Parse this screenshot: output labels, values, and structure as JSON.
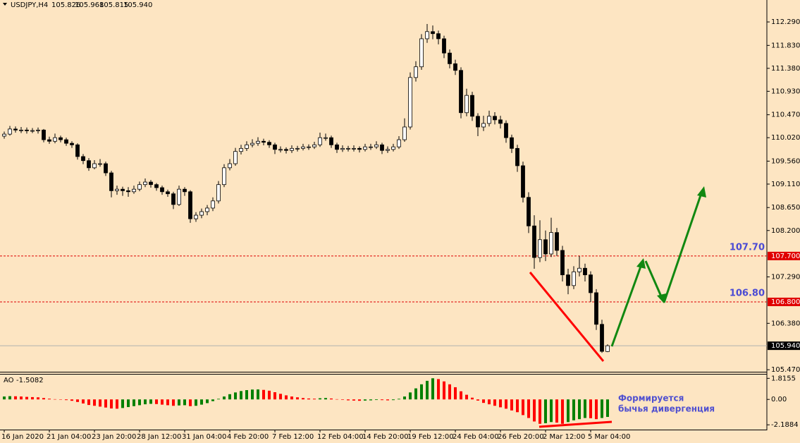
{
  "chart_data": {
    "type": "candlestick",
    "title": "USDJPY,H4",
    "ohlc_labels": [
      "105.826",
      "105.968",
      "105.815",
      "105.940"
    ],
    "categories": [
      "16 Jan 2020",
      null,
      null,
      null,
      null,
      null,
      null,
      null,
      "21 Jan 04:00",
      null,
      null,
      null,
      null,
      null,
      null,
      null,
      "23 Jan 20:00",
      null,
      null,
      null,
      null,
      null,
      null,
      null,
      "28 Jan 12:00",
      null,
      null,
      null,
      null,
      null,
      null,
      null,
      "31 Jan 04:00",
      null,
      null,
      null,
      null,
      null,
      null,
      null,
      "4 Feb 20:00",
      null,
      null,
      null,
      null,
      null,
      null,
      null,
      "7 Feb 12:00",
      null,
      null,
      null,
      null,
      null,
      null,
      null,
      "12 Feb 04:00",
      null,
      null,
      null,
      null,
      null,
      null,
      null,
      "14 Feb 20:00",
      null,
      null,
      null,
      null,
      null,
      null,
      null,
      "19 Feb 12:00",
      null,
      null,
      null,
      null,
      null,
      null,
      null,
      "24 Feb 04:00",
      null,
      null,
      null,
      null,
      null,
      null,
      null,
      "26 Feb 20:00",
      null,
      null,
      null,
      null,
      null,
      null,
      null,
      "2 Mar 12:00",
      null,
      null,
      null,
      null,
      null,
      null,
      null,
      "5 Mar 04:00",
      null,
      null,
      null
    ],
    "candles": [
      [
        110.05,
        110.14,
        110.0,
        110.09
      ],
      [
        110.09,
        110.25,
        110.06,
        110.19
      ],
      [
        110.19,
        110.24,
        110.12,
        110.17
      ],
      [
        110.17,
        110.23,
        110.11,
        110.17
      ],
      [
        110.17,
        110.22,
        110.1,
        110.16
      ],
      [
        110.16,
        110.21,
        110.11,
        110.16
      ],
      [
        110.16,
        110.22,
        110.1,
        110.17
      ],
      [
        110.17,
        110.19,
        109.93,
        109.98
      ],
      [
        109.98,
        110.04,
        109.9,
        109.95
      ],
      [
        109.95,
        110.1,
        109.91,
        110.02
      ],
      [
        110.02,
        110.06,
        109.93,
        109.98
      ],
      [
        109.98,
        110.02,
        109.86,
        109.91
      ],
      [
        109.91,
        109.95,
        109.82,
        109.88
      ],
      [
        109.88,
        109.91,
        109.59,
        109.65
      ],
      [
        109.65,
        109.7,
        109.5,
        109.57
      ],
      [
        109.57,
        109.62,
        109.37,
        109.43
      ],
      [
        109.43,
        109.58,
        109.4,
        109.51
      ],
      [
        109.51,
        109.6,
        109.45,
        109.51
      ],
      [
        109.51,
        109.55,
        109.27,
        109.33
      ],
      [
        109.33,
        109.37,
        108.85,
        108.98
      ],
      [
        108.98,
        109.08,
        108.9,
        109.01
      ],
      [
        109.01,
        109.06,
        108.88,
        108.98
      ],
      [
        108.98,
        109.05,
        108.86,
        108.96
      ],
      [
        108.96,
        109.08,
        108.92,
        109.01
      ],
      [
        109.01,
        109.16,
        108.97,
        109.1
      ],
      [
        109.1,
        109.22,
        109.05,
        109.15
      ],
      [
        109.15,
        109.19,
        109.04,
        109.1
      ],
      [
        109.1,
        109.13,
        108.98,
        109.04
      ],
      [
        109.04,
        109.08,
        108.9,
        108.96
      ],
      [
        108.96,
        109.0,
        108.86,
        108.92
      ],
      [
        108.92,
        108.96,
        108.62,
        108.71
      ],
      [
        108.71,
        109.08,
        108.68,
        109.01
      ],
      [
        109.01,
        109.05,
        108.88,
        108.96
      ],
      [
        108.96,
        108.99,
        108.35,
        108.43
      ],
      [
        108.43,
        108.56,
        108.37,
        108.5
      ],
      [
        108.5,
        108.63,
        108.44,
        108.57
      ],
      [
        108.57,
        108.7,
        108.5,
        108.64
      ],
      [
        108.64,
        108.85,
        108.58,
        108.78
      ],
      [
        108.78,
        109.17,
        108.73,
        109.1
      ],
      [
        109.1,
        109.5,
        109.05,
        109.43
      ],
      [
        109.43,
        109.6,
        109.38,
        109.51
      ],
      [
        109.51,
        109.82,
        109.47,
        109.75
      ],
      [
        109.75,
        109.88,
        109.69,
        109.81
      ],
      [
        109.81,
        109.95,
        109.76,
        109.88
      ],
      [
        109.88,
        109.99,
        109.83,
        109.91
      ],
      [
        109.91,
        110.03,
        109.86,
        109.95
      ],
      [
        109.95,
        110.0,
        109.87,
        109.93
      ],
      [
        109.93,
        109.97,
        109.82,
        109.88
      ],
      [
        109.88,
        109.92,
        109.7,
        109.79
      ],
      [
        109.79,
        109.85,
        109.73,
        109.79
      ],
      [
        109.79,
        109.83,
        109.71,
        109.77
      ],
      [
        109.77,
        109.87,
        109.72,
        109.81
      ],
      [
        109.81,
        109.86,
        109.75,
        109.81
      ],
      [
        109.81,
        109.9,
        109.77,
        109.84
      ],
      [
        109.84,
        109.89,
        109.78,
        109.84
      ],
      [
        109.84,
        109.94,
        109.8,
        109.88
      ],
      [
        109.88,
        110.12,
        109.84,
        110.02
      ],
      [
        110.02,
        110.1,
        109.96,
        110.02
      ],
      [
        110.02,
        110.06,
        109.82,
        109.88
      ],
      [
        109.88,
        109.92,
        109.72,
        109.79
      ],
      [
        109.79,
        109.87,
        109.74,
        109.81
      ],
      [
        109.81,
        109.86,
        109.75,
        109.81
      ],
      [
        109.81,
        109.87,
        109.75,
        109.81
      ],
      [
        109.81,
        109.85,
        109.73,
        109.79
      ],
      [
        109.79,
        109.9,
        109.75,
        109.84
      ],
      [
        109.84,
        109.9,
        109.78,
        109.84
      ],
      [
        109.84,
        109.95,
        109.8,
        109.88
      ],
      [
        109.88,
        109.92,
        109.7,
        109.77
      ],
      [
        109.77,
        109.85,
        109.72,
        109.79
      ],
      [
        109.79,
        109.9,
        109.75,
        109.84
      ],
      [
        109.84,
        110.05,
        109.8,
        109.98
      ],
      [
        109.98,
        110.4,
        109.94,
        110.23
      ],
      [
        110.23,
        111.3,
        110.18,
        111.2
      ],
      [
        111.2,
        111.52,
        111.12,
        111.41
      ],
      [
        111.41,
        112.05,
        111.35,
        111.96
      ],
      [
        111.96,
        112.25,
        111.88,
        112.1
      ],
      [
        112.1,
        112.22,
        111.95,
        112.06
      ],
      [
        112.06,
        112.12,
        111.85,
        111.96
      ],
      [
        111.96,
        112.02,
        111.58,
        111.68
      ],
      [
        111.68,
        111.75,
        111.38,
        111.47
      ],
      [
        111.47,
        111.55,
        111.25,
        111.34
      ],
      [
        111.34,
        111.4,
        110.4,
        110.51
      ],
      [
        110.51,
        110.98,
        110.44,
        110.85
      ],
      [
        110.85,
        110.92,
        110.35,
        110.44
      ],
      [
        110.44,
        110.5,
        110.05,
        110.23
      ],
      [
        110.23,
        110.45,
        110.15,
        110.3
      ],
      [
        110.3,
        110.55,
        110.24,
        110.44
      ],
      [
        110.44,
        110.52,
        110.28,
        110.37
      ],
      [
        110.37,
        110.45,
        110.2,
        110.3
      ],
      [
        110.3,
        110.36,
        109.92,
        110.02
      ],
      [
        110.02,
        110.08,
        109.72,
        109.81
      ],
      [
        109.81,
        109.88,
        109.35,
        109.47
      ],
      [
        109.47,
        109.55,
        108.75,
        108.85
      ],
      [
        108.85,
        108.95,
        108.15,
        108.29
      ],
      [
        108.29,
        108.5,
        107.45,
        107.67
      ],
      [
        107.67,
        108.4,
        107.58,
        108.02
      ],
      [
        108.02,
        108.2,
        107.6,
        107.74
      ],
      [
        107.74,
        108.45,
        107.68,
        108.16
      ],
      [
        108.16,
        108.25,
        107.7,
        107.81
      ],
      [
        107.81,
        107.9,
        107.2,
        107.33
      ],
      [
        107.33,
        107.45,
        106.95,
        107.12
      ],
      [
        107.12,
        107.5,
        107.05,
        107.39
      ],
      [
        107.39,
        107.7,
        107.3,
        107.46
      ],
      [
        107.46,
        107.55,
        107.2,
        107.33
      ],
      [
        107.33,
        107.4,
        106.8,
        106.98
      ],
      [
        106.98,
        107.05,
        106.25,
        106.36
      ],
      [
        106.36,
        106.45,
        105.8,
        105.83
      ],
      [
        105.826,
        105.968,
        105.815,
        105.94
      ]
    ],
    "up_color": "#ffffff",
    "down_color": "#000000",
    "ylim": [
      105.43,
      112.72
    ],
    "yticks": [
      {
        "value": 112.29,
        "label": "112.290"
      },
      {
        "value": 111.83,
        "label": "111.830"
      },
      {
        "value": 111.38,
        "label": "111.380"
      },
      {
        "value": 110.93,
        "label": "110.930"
      },
      {
        "value": 110.47,
        "label": "110.470"
      },
      {
        "value": 110.02,
        "label": "110.020"
      },
      {
        "value": 109.56,
        "label": "109.560"
      },
      {
        "value": 109.11,
        "label": "109.110"
      },
      {
        "value": 108.65,
        "label": "108.650"
      },
      {
        "value": 108.2,
        "label": "108.200"
      },
      {
        "value": 107.29,
        "label": "107.290"
      },
      {
        "value": 106.38,
        "label": "106.380"
      },
      {
        "value": 105.47,
        "label": "105.470"
      }
    ],
    "levels": [
      {
        "value": 107.7,
        "label": "107.70",
        "axis_label": "107.700",
        "color": "#e00000"
      },
      {
        "value": 106.8,
        "label": "106.80",
        "axis_label": "106.800",
        "color": "#e00000"
      }
    ],
    "current": {
      "value": 105.94,
      "axis_label": "105.940",
      "color": "#000000"
    },
    "indicator": {
      "name": "AO",
      "up_color": "#008000",
      "down_color": "#ff0000",
      "values": [
        0.25,
        0.28,
        0.27,
        0.25,
        0.22,
        0.2,
        0.18,
        0.12,
        0.06,
        0.02,
        -0.02,
        -0.06,
        -0.12,
        -0.22,
        -0.35,
        -0.48,
        -0.55,
        -0.62,
        -0.7,
        -0.78,
        -0.8,
        -0.74,
        -0.66,
        -0.58,
        -0.5,
        -0.42,
        -0.38,
        -0.4,
        -0.45,
        -0.5,
        -0.55,
        -0.52,
        -0.5,
        -0.58,
        -0.55,
        -0.45,
        -0.32,
        -0.15,
        0.05,
        0.25,
        0.45,
        0.6,
        0.72,
        0.8,
        0.85,
        0.86,
        0.82,
        0.75,
        0.62,
        0.48,
        0.35,
        0.25,
        0.18,
        0.12,
        0.08,
        0.06,
        0.1,
        0.12,
        0.08,
        0.02,
        -0.04,
        -0.08,
        -0.1,
        -0.12,
        -0.1,
        -0.08,
        -0.05,
        -0.06,
        -0.08,
        -0.06,
        0.05,
        0.25,
        0.6,
        0.95,
        1.3,
        1.6,
        1.82,
        1.75,
        1.55,
        1.3,
        1.05,
        0.7,
        0.4,
        0.15,
        -0.1,
        -0.3,
        -0.42,
        -0.55,
        -0.68,
        -0.8,
        -0.95,
        -1.1,
        -1.35,
        -1.6,
        -1.9,
        -2.1,
        -2.05,
        -1.95,
        -2.0,
        -2.1,
        -1.95,
        -1.8,
        -1.7,
        -1.6,
        -1.62,
        -1.7,
        -1.6,
        -1.5082
      ],
      "ylim": [
        -2.6,
        2.2
      ],
      "yticks": [
        1.8155,
        {
          "value": 0,
          "label": "0.00"
        },
        -2.1884
      ]
    },
    "annotation": [
      "Формируется",
      "бычья дивергенция"
    ]
  }
}
